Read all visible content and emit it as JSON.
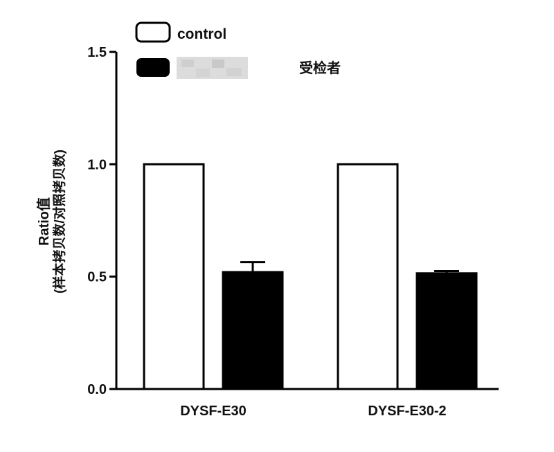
{
  "chart_data": {
    "type": "bar",
    "categories": [
      "DYSF-E30",
      "DYSF-E30-2"
    ],
    "series": [
      {
        "name": "control",
        "values": [
          1.0,
          1.0
        ],
        "fill": "#ffffff"
      },
      {
        "name": "",
        "values": [
          0.52,
          0.515
        ],
        "errors": [
          0.045,
          0.01
        ],
        "fill": "#000000"
      }
    ],
    "ylabel": [
      "Ratio值",
      "(样本拷贝数/对照拷贝数)"
    ],
    "ylim": [
      0,
      1.5
    ],
    "yticks": [
      "0.0",
      "0.5",
      "1.0",
      "1.5"
    ],
    "legend": {
      "position": "top-left"
    },
    "annotation": "受检者"
  }
}
